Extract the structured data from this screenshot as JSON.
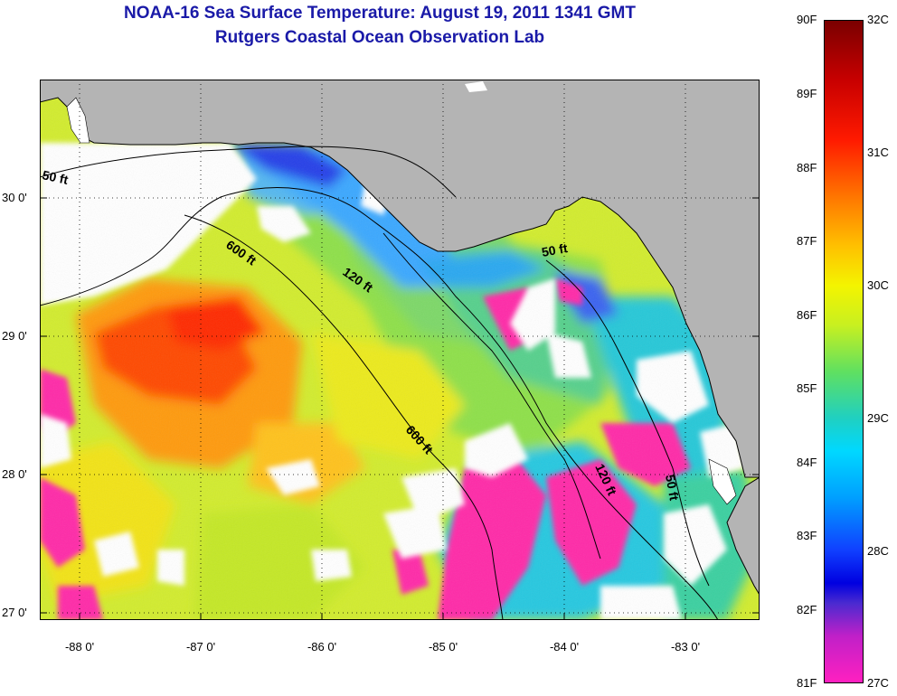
{
  "title": "NOAA-16 Sea Surface Temperature:  August 19, 2011 1341 GMT",
  "subtitle": "Rutgers Coastal Ocean Observation Lab",
  "map": {
    "lat_labels": [
      "30 0'",
      "29 0'",
      "28 0'",
      "27 0'"
    ],
    "lon_labels": [
      "-88 0'",
      "-87 0'",
      "-86 0'",
      "-85 0'",
      "-84 0'",
      "-83 0'"
    ],
    "isobath_labels": [
      "50 ft",
      "600 ft",
      "120 ft",
      "50 ft",
      "600 ft",
      "120 ft",
      "50 ft"
    ],
    "colors": {
      "land": "#b3b3b3",
      "cloud": "#ffffff",
      "water_warm": "#ff3a00",
      "water_mid": "#d8ef2a",
      "water_cool": "#28c6d4",
      "water_cold": "#2030e8",
      "water_coldest": "#ff2bb0"
    }
  },
  "colorbar": {
    "fahrenheit_labels": [
      "90F",
      "89F",
      "88F",
      "87F",
      "86F",
      "85F",
      "84F",
      "83F",
      "82F",
      "81F"
    ],
    "celsius_labels": [
      "32C",
      "31C",
      "30C",
      "29C",
      "28C",
      "27C"
    ],
    "range_f": [
      81,
      90
    ],
    "range_c": [
      27,
      32
    ]
  }
}
